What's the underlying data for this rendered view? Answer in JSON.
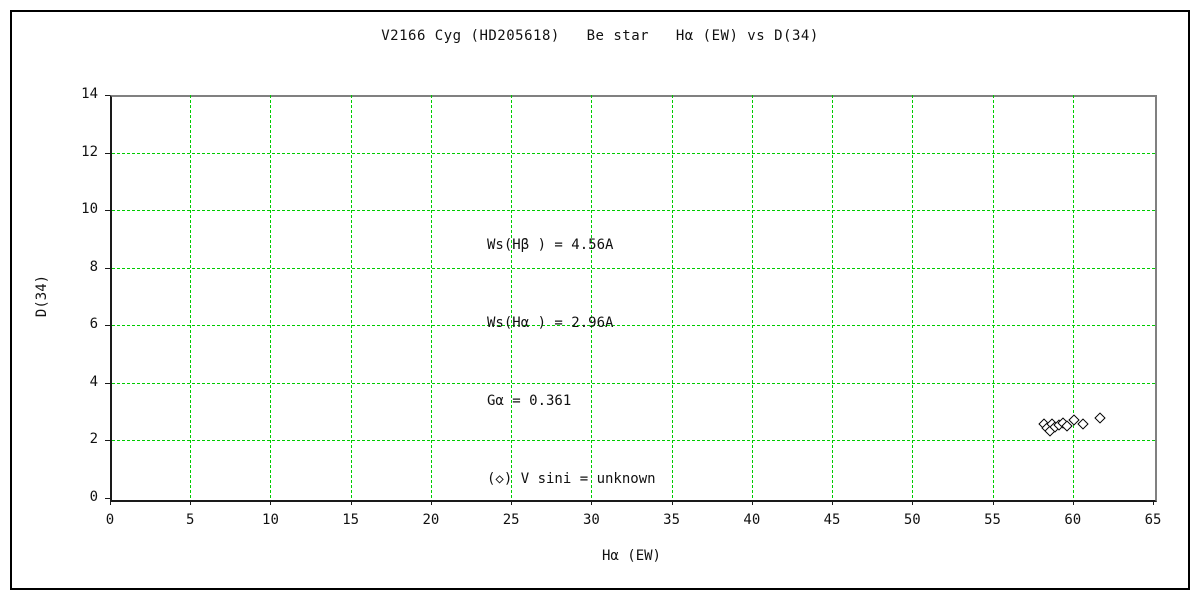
{
  "title": "V2166 Cyg (HD205618)   Be star   Hα (EW) vs D(34)",
  "chart_data": {
    "type": "scatter",
    "title": "V2166 Cyg (HD205618)   Be star   Hα (EW) vs D(34)",
    "xlabel": "Hα (EW)",
    "ylabel": "D(34)",
    "xlim": [
      0,
      65
    ],
    "ylim": [
      0,
      14
    ],
    "xticks": [
      0,
      5,
      10,
      15,
      20,
      25,
      30,
      35,
      40,
      45,
      50,
      55,
      60,
      65
    ],
    "yticks": [
      0,
      2,
      4,
      6,
      8,
      10,
      12,
      14
    ],
    "grid": true,
    "grid_color": "#00cc00",
    "frame_color_top_right": "#808080",
    "axis_color": "#1a1a1a",
    "legend_position": "inside plot, upper-middle text block",
    "marker": "open-diamond",
    "series": [
      {
        "name": "V sini = unknown",
        "marker": "diamond",
        "points": [
          [
            58.25,
            2.55
          ],
          [
            58.4,
            2.42
          ],
          [
            58.6,
            2.32
          ],
          [
            58.75,
            2.55
          ],
          [
            58.95,
            2.45
          ],
          [
            59.15,
            2.52
          ],
          [
            59.45,
            2.58
          ],
          [
            59.7,
            2.48
          ],
          [
            60.1,
            2.68
          ],
          [
            60.65,
            2.57
          ],
          [
            61.7,
            2.75
          ]
        ]
      }
    ],
    "annotations": [
      "Ws(Hβ ) = 4.56A",
      "Ws(Hα ) = 2.96A",
      "Gα = 0.361",
      "(◇) V sini = unknown"
    ]
  }
}
